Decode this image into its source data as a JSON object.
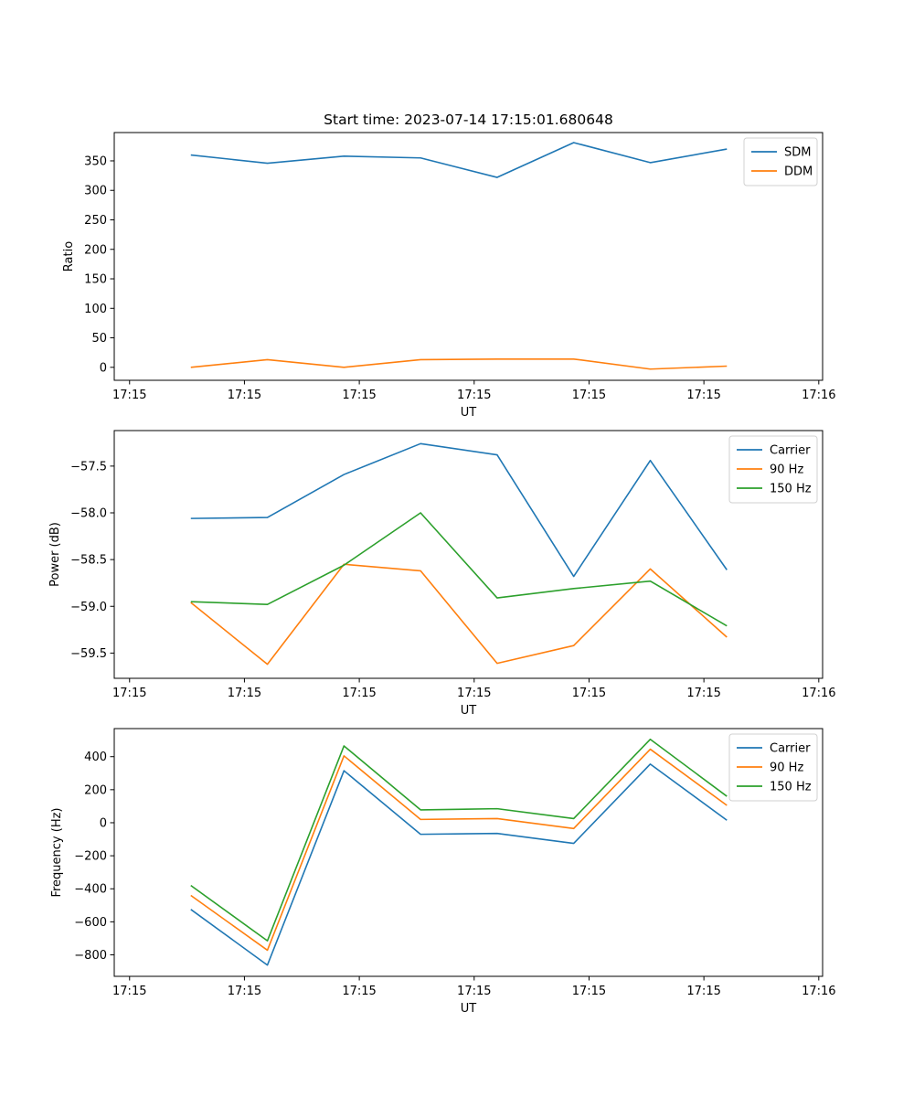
{
  "chart_data": [
    {
      "type": "line",
      "title": "Start time: 2023-07-14 17:15:01.680648",
      "xlabel": "UT",
      "ylabel": "Ratio",
      "x": [
        1,
        2,
        3,
        4,
        5,
        6,
        7,
        8
      ],
      "xlim": [
        0,
        9.25
      ],
      "x_ticks": [
        0.2,
        1.7,
        3.2,
        4.7,
        6.2,
        7.7,
        9.2
      ],
      "x_tick_labels": [
        "17:15",
        "17:15",
        "17:15",
        "17:15",
        "17:15",
        "17:15",
        "17:16"
      ],
      "ylim": [
        -22,
        398
      ],
      "y_ticks": [
        0,
        50,
        100,
        150,
        200,
        250,
        300,
        350
      ],
      "y_tick_labels": [
        "0",
        "50",
        "100",
        "150",
        "200",
        "250",
        "300",
        "350"
      ],
      "legend": "top-right",
      "grid": false,
      "series": [
        {
          "name": "SDM",
          "color": "#1f77b4",
          "values": [
            360,
            346,
            358,
            355,
            322,
            381,
            347,
            370
          ]
        },
        {
          "name": "DDM",
          "color": "#ff7f0e",
          "values": [
            0,
            13,
            0,
            13,
            14,
            14,
            -3,
            2
          ]
        }
      ]
    },
    {
      "type": "line",
      "title": "",
      "xlabel": "UT",
      "ylabel": "Power (dB)",
      "x": [
        1,
        2,
        3,
        4,
        5,
        6,
        7,
        8
      ],
      "xlim": [
        0,
        9.25
      ],
      "x_ticks": [
        0.2,
        1.7,
        3.2,
        4.7,
        6.2,
        7.7,
        9.2
      ],
      "x_tick_labels": [
        "17:15",
        "17:15",
        "17:15",
        "17:15",
        "17:15",
        "17:15",
        "17:16"
      ],
      "ylim": [
        -59.77,
        -57.12
      ],
      "y_ticks": [
        -59.5,
        -59.0,
        -58.5,
        -58.0,
        -57.5
      ],
      "y_tick_labels": [
        "−59.5",
        "−59.0",
        "−58.5",
        "−58.0",
        "−57.5"
      ],
      "legend": "top-right",
      "grid": false,
      "series": [
        {
          "name": "Carrier",
          "color": "#1f77b4",
          "values": [
            -58.06,
            -58.05,
            -57.59,
            -57.26,
            -57.38,
            -58.68,
            -57.44,
            -58.61
          ]
        },
        {
          "name": "90 Hz",
          "color": "#ff7f0e",
          "values": [
            -58.96,
            -59.62,
            -58.55,
            -58.62,
            -59.61,
            -59.42,
            -58.6,
            -59.33
          ]
        },
        {
          "name": "150 Hz",
          "color": "#2ca02c",
          "values": [
            -58.95,
            -58.98,
            -58.56,
            -58.0,
            -58.91,
            -58.81,
            -58.73,
            -59.21
          ]
        }
      ]
    },
    {
      "type": "line",
      "title": "",
      "xlabel": "UT",
      "ylabel": "Frequency (Hz)",
      "x": [
        1,
        2,
        3,
        4,
        5,
        6,
        7,
        8
      ],
      "xlim": [
        0,
        9.25
      ],
      "x_ticks": [
        0.2,
        1.7,
        3.2,
        4.7,
        6.2,
        7.7,
        9.2
      ],
      "x_tick_labels": [
        "17:15",
        "17:15",
        "17:15",
        "17:15",
        "17:15",
        "17:15",
        "17:16"
      ],
      "ylim": [
        -930,
        570
      ],
      "y_ticks": [
        -800,
        -600,
        -400,
        -200,
        0,
        200,
        400
      ],
      "y_tick_labels": [
        "−800",
        "−600",
        "−400",
        "−200",
        "0",
        "200",
        "400"
      ],
      "legend": "top-right",
      "grid": false,
      "series": [
        {
          "name": "Carrier",
          "color": "#1f77b4",
          "values": [
            -525,
            -862,
            315,
            -70,
            -65,
            -125,
            355,
            15
          ]
        },
        {
          "name": "90 Hz",
          "color": "#ff7f0e",
          "values": [
            -440,
            -772,
            405,
            20,
            25,
            -35,
            445,
            105
          ]
        },
        {
          "name": "150 Hz",
          "color": "#2ca02c",
          "values": [
            -380,
            -715,
            465,
            78,
            85,
            25,
            505,
            160
          ]
        }
      ]
    }
  ]
}
